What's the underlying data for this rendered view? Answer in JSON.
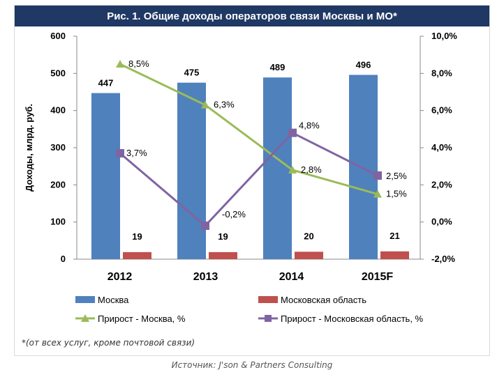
{
  "title": "Рис. 1. Общие доходы операторов связи Москвы и МО*",
  "footnote": "*(от всех услуг, кроме почтовой связи)",
  "source": "Источник: J'son & Partners Consulting",
  "chart_data": {
    "type": "bar",
    "categories": [
      "2012",
      "2013",
      "2014",
      "2015F"
    ],
    "ylabel": "Доходы, млрд. руб.",
    "ylim": [
      0,
      600
    ],
    "y_ticks": [
      "600",
      "500",
      "400",
      "300",
      "200",
      "100",
      "0"
    ],
    "y2lim": [
      -2,
      10
    ],
    "y2_ticks": [
      "10,0%",
      "8,0%",
      "6,0%",
      "4,0%",
      "2,0%",
      "0,0%",
      "-2,0%"
    ],
    "grid": false,
    "legend_position": "bottom",
    "series": [
      {
        "name": "Москва",
        "kind": "bar",
        "axis": "left",
        "color": "#4f81bd",
        "values": [
          447,
          475,
          489,
          496
        ],
        "labels": [
          "447",
          "475",
          "489",
          "496"
        ]
      },
      {
        "name": "Московская область",
        "kind": "bar",
        "axis": "left",
        "color": "#c0504d",
        "values": [
          19,
          19,
          20,
          21
        ],
        "labels": [
          "19",
          "19",
          "20",
          "21"
        ]
      },
      {
        "name": "Прирост - Москва, %",
        "kind": "line",
        "axis": "right",
        "color": "#9bbb59",
        "marker": "triangle",
        "values": [
          8.5,
          6.3,
          2.8,
          1.5
        ],
        "labels": [
          "8,5%",
          "6,3%",
          "2,8%",
          "1,5%"
        ]
      },
      {
        "name": "Прирост - Московская область, %",
        "kind": "line",
        "axis": "right",
        "color": "#8064a2",
        "marker": "square",
        "values": [
          3.7,
          -0.2,
          4.8,
          2.5
        ],
        "labels": [
          "3,7%",
          "-0,2%",
          "4,8%",
          "2,5%"
        ]
      }
    ]
  }
}
